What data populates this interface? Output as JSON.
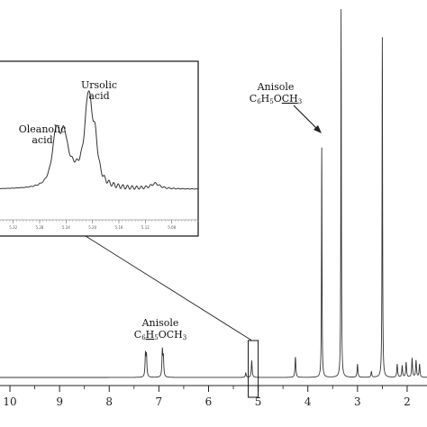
{
  "chart_data": {
    "type": "line",
    "title": "",
    "xlabel": "",
    "ylabel": "",
    "x_reversed": true,
    "xlim": [
      10.2,
      1.6
    ],
    "x_ticks": [
      "10",
      "9",
      "8",
      "7",
      "6",
      "5",
      "4",
      "3",
      "2"
    ],
    "peaks": [
      {
        "ppm": 7.27,
        "height": 0.06
      },
      {
        "ppm": 7.25,
        "height": 0.055
      },
      {
        "ppm": 6.93,
        "height": 0.07
      },
      {
        "ppm": 6.91,
        "height": 0.05
      },
      {
        "ppm": 5.25,
        "height": 0.012
      },
      {
        "ppm": 5.13,
        "height": 0.045
      },
      {
        "ppm": 4.25,
        "height": 0.055
      },
      {
        "ppm": 3.72,
        "height": 0.62
      },
      {
        "ppm": 3.33,
        "height": 0.99
      },
      {
        "ppm": 3.0,
        "height": 0.035
      },
      {
        "ppm": 2.72,
        "height": 0.015
      },
      {
        "ppm": 2.5,
        "height": 0.92
      },
      {
        "ppm": 2.2,
        "height": 0.035
      },
      {
        "ppm": 2.1,
        "height": 0.03
      },
      {
        "ppm": 2.02,
        "height": 0.04
      },
      {
        "ppm": 1.9,
        "height": 0.05
      },
      {
        "ppm": 1.82,
        "height": 0.045
      },
      {
        "ppm": 1.75,
        "height": 0.035
      }
    ],
    "annotations": [
      {
        "label": "Anisole",
        "formula_parts": [
          "C",
          "6",
          "H",
          "5",
          "O",
          "CH",
          "3"
        ],
        "underlined_part": "CH",
        "ppm": 3.72
      },
      {
        "label": "Anisole",
        "formula_parts": [
          "C",
          "6",
          "H",
          "5",
          "OCH",
          "3"
        ],
        "underlined_part": "H",
        "ppm": 7.0
      }
    ],
    "highlight_region": {
      "ppm_range": [
        5.2,
        5.0
      ]
    },
    "inset": {
      "xlim": [
        5.34,
        5.04
      ],
      "x_ticks": [
        "5.32",
        "5.28",
        "5.24",
        "5.20",
        "5.16",
        "5.12",
        "5.08"
      ],
      "peaks": [
        {
          "ppm": 5.255,
          "height": 0.43,
          "label": "Oleanolic acid"
        },
        {
          "ppm": 5.205,
          "height": 1.0,
          "label": "Ursolic acid"
        }
      ]
    }
  }
}
